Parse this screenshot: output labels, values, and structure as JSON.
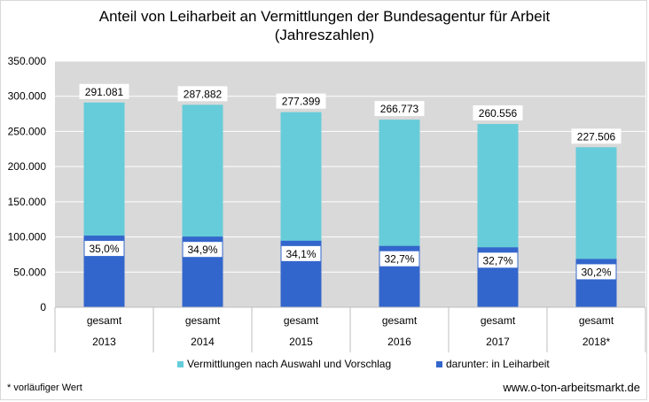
{
  "chart_data": {
    "type": "bar",
    "title": "Anteil von Leiharbeit an Vermittlungen der Bundesagentur für Arbeit",
    "subtitle": "(Jahreszahlen)",
    "categories": [
      {
        "label": "gesamt",
        "year": "2013"
      },
      {
        "label": "gesamt",
        "year": "2014"
      },
      {
        "label": "gesamt",
        "year": "2015"
      },
      {
        "label": "gesamt",
        "year": "2016"
      },
      {
        "label": "gesamt",
        "year": "2017"
      },
      {
        "label": "gesamt",
        "year": "2018*"
      }
    ],
    "series": [
      {
        "name": "Vermittlungen nach Auswahl und Vorschlag",
        "color": "#66CCD9",
        "values": [
          291081,
          287882,
          277399,
          266773,
          260556,
          227506
        ],
        "labels": [
          "291.081",
          "287.882",
          "277.399",
          "266.773",
          "260.556",
          "227.506"
        ]
      },
      {
        "name": "darunter: in Leiharbeit",
        "color": "#3366CC",
        "values": [
          101878,
          100471,
          94593,
          87235,
          85202,
          68707
        ],
        "labels": [
          "35,0%",
          "34,9%",
          "34,1%",
          "32,7%",
          "32,7%",
          "30,2%"
        ]
      }
    ],
    "yticks": [
      "0",
      "50.000",
      "100.000",
      "150.000",
      "200.000",
      "250.000",
      "300.000",
      "350.000"
    ],
    "ylim": [
      0,
      350000
    ],
    "grid": true,
    "legend_position": "bottom",
    "plot_background": "#D9D9D9",
    "grid_color": "#FFFFFF"
  },
  "footnote": "* vorläufiger Wert",
  "website": "www.o-ton-arbeitsmarkt.de"
}
